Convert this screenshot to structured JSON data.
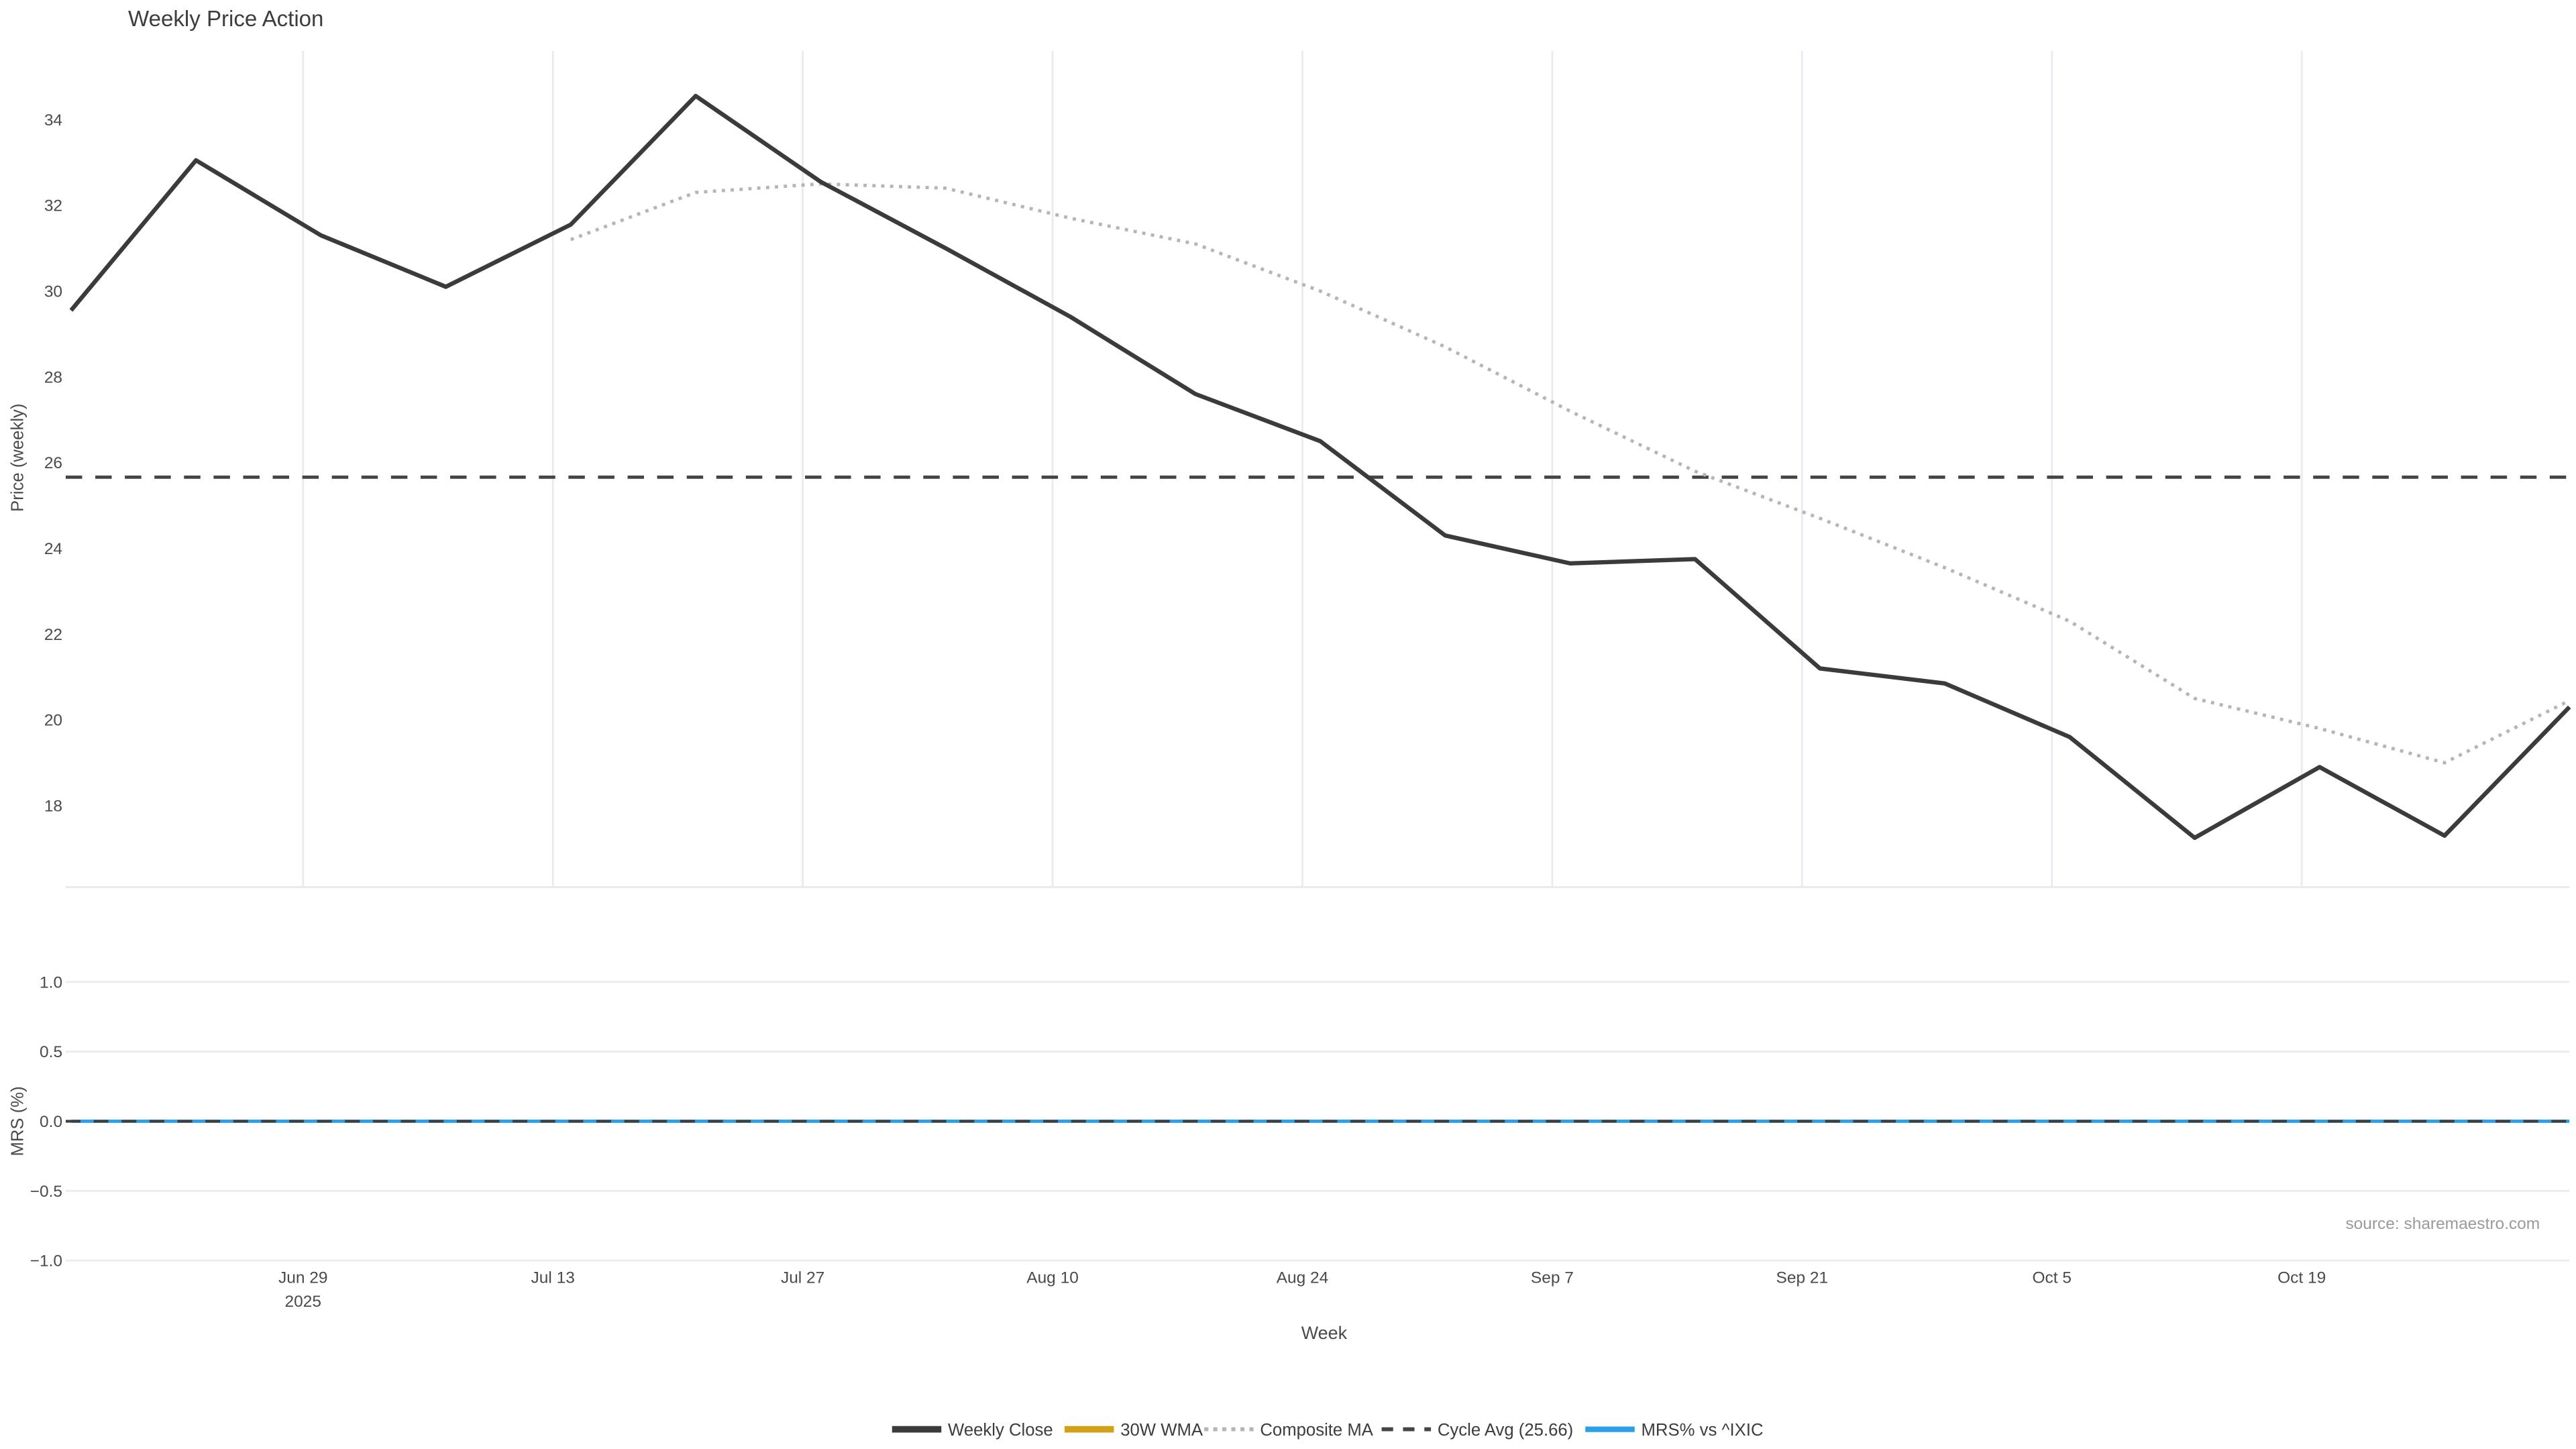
{
  "title": "Weekly Price Action",
  "source_text": "source: sharemaestro.com",
  "x_axis_title": "Week",
  "top_axis": {
    "title": "Price (weekly)",
    "tick_labels": [
      "34",
      "32",
      "30",
      "28",
      "26",
      "24",
      "22",
      "20",
      "18"
    ],
    "tick_values": [
      34,
      32,
      30,
      28,
      26,
      24,
      22,
      20,
      18
    ],
    "range": [
      16.1,
      35.6
    ]
  },
  "bottom_axis": {
    "title": "MRS (%)",
    "tick_labels": [
      "1.0",
      "0.5",
      "0.0",
      "−0.5",
      "−1.0"
    ],
    "tick_values": [
      1.0,
      0.5,
      0.0,
      -0.5,
      -1.0
    ],
    "range": [
      -1.15,
      1.15
    ]
  },
  "x_axis": {
    "ticks": [
      {
        "label": "Jun 29",
        "day": 14
      },
      {
        "label": "Jul 13",
        "day": 28
      },
      {
        "label": "Jul 27",
        "day": 42
      },
      {
        "label": "Aug 10",
        "day": 56
      },
      {
        "label": "Aug 24",
        "day": 70
      },
      {
        "label": "Sep 7",
        "day": 84
      },
      {
        "label": "Sep 21",
        "day": 98
      },
      {
        "label": "Oct 5",
        "day": 112
      },
      {
        "label": "Oct 19",
        "day": 126
      }
    ],
    "year_label": "2025",
    "day_range": [
      0.7,
      141.0
    ]
  },
  "chart_data": {
    "type": "line",
    "title": "Weekly Price Action",
    "xlabel": "Week",
    "ylabel_top": "Price (weekly)",
    "ylabel_bottom": "MRS (%)",
    "x": [
      "2025-06-16",
      "2025-06-23",
      "2025-06-30",
      "2025-07-07",
      "2025-07-14",
      "2025-07-21",
      "2025-07-28",
      "2025-08-04",
      "2025-08-11",
      "2025-08-18",
      "2025-08-25",
      "2025-09-01",
      "2025-09-08",
      "2025-09-15",
      "2025-09-22",
      "2025-09-29",
      "2025-10-06",
      "2025-10-13",
      "2025-10-20",
      "2025-10-27",
      "2025-11-03"
    ],
    "x_days": [
      1,
      8,
      15,
      22,
      29,
      36,
      43,
      50,
      57,
      64,
      71,
      78,
      85,
      92,
      99,
      106,
      113,
      120,
      127,
      134,
      141
    ],
    "grid": "vertical-top-panel-only",
    "legend_position": "bottom-center",
    "series": [
      {
        "name": "Weekly Close",
        "panel": "top",
        "color": "#3b3b3b",
        "style": "solid",
        "width": 2.6,
        "values": [
          29.55,
          33.05,
          31.3,
          30.1,
          31.55,
          34.55,
          32.55,
          31.0,
          29.4,
          27.6,
          26.5,
          24.3,
          23.65,
          23.75,
          21.2,
          20.85,
          19.6,
          17.25,
          18.9,
          17.3,
          20.3
        ]
      },
      {
        "name": "30W WMA",
        "panel": "top",
        "color": "#d4a017",
        "style": "solid",
        "width": 2.6,
        "values": []
      },
      {
        "name": "Composite MA",
        "panel": "top",
        "color": "#b5b5b5",
        "style": "dotted",
        "width": 2.0,
        "values": [
          null,
          null,
          null,
          null,
          31.2,
          32.3,
          32.5,
          32.4,
          31.7,
          31.1,
          30.0,
          28.7,
          27.2,
          25.8,
          24.7,
          23.55,
          22.3,
          20.5,
          19.8,
          19.0,
          20.45
        ]
      },
      {
        "name": "Cycle Avg (25.66)",
        "panel": "top",
        "color": "#454545",
        "style": "dashed",
        "width": 2.0,
        "hline": 25.66,
        "values": []
      },
      {
        "name": "MRS% vs ^IXIC",
        "panel": "bottom",
        "color": "#2ba0e8",
        "style": "solid",
        "width": 2.0,
        "values": [
          0,
          0,
          0,
          0,
          0,
          0,
          0,
          0,
          0,
          0,
          0,
          0,
          0,
          0,
          0,
          0,
          0,
          0,
          0,
          0,
          0
        ]
      }
    ],
    "zero_line_bottom_panel": 0.0
  },
  "colors": {
    "grid_vertical": "#e7eaee",
    "grid_horizontal": "#ebebef",
    "panel_edge": "#e8e8ec",
    "zero_dash": "#3f3f3f",
    "tick_text": "#4a4a4a",
    "title_text": "#3d3d3d",
    "source_text": "#9a9a9a",
    "background": "#ffffff"
  }
}
